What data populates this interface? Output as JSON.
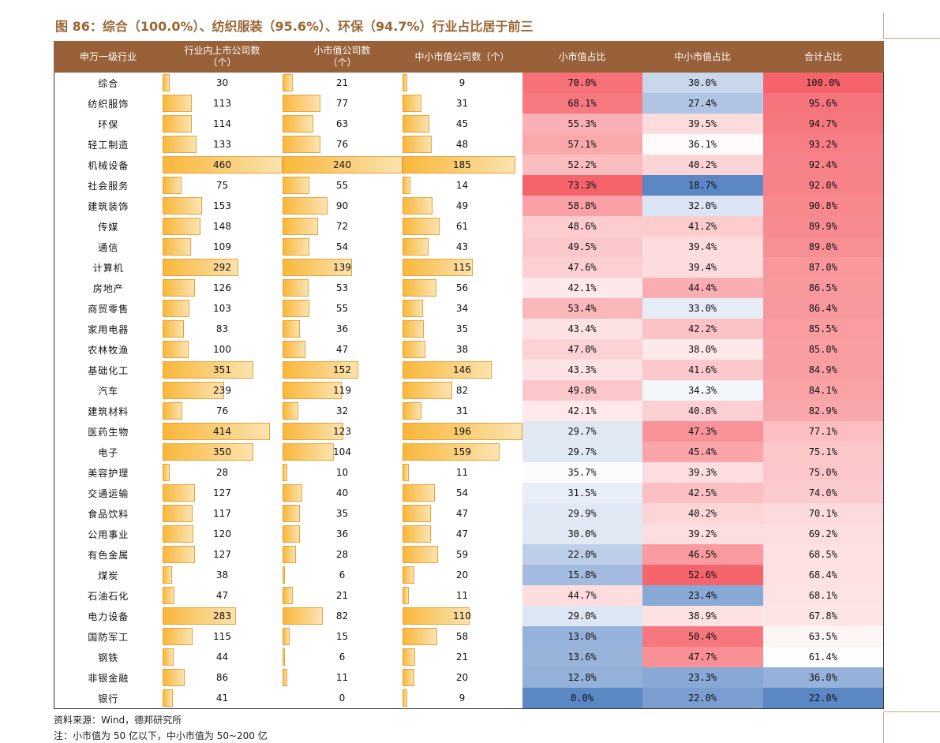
{
  "title": "图 86：综合（100.0%）、纺织服装（95.6%）、环保（94.7%）行业占比居于前三",
  "headers": [
    "申万一级行业",
    "行业内上市公司数\n（个）",
    "小市值公司数\n（个）",
    "中小市值公司数（个）",
    "小市值占比",
    "中小市值占比",
    "合计占比"
  ],
  "colors": {
    "header_bg": "#99613a",
    "bar": "#f9b73a",
    "heat_high": "#f5636b",
    "heat_mid": "#ffffff",
    "heat_low": "#5b87c5"
  },
  "rows": [
    {
      "name": "综合",
      "total": "30",
      "small": "21",
      "mid": "9",
      "small_pct": "70.0%",
      "mid_pct": "30.0%",
      "sum_pct": "100.0%"
    },
    {
      "name": "纺织服饰",
      "total": "113",
      "small": "77",
      "mid": "31",
      "small_pct": "68.1%",
      "mid_pct": "27.4%",
      "sum_pct": "95.6%"
    },
    {
      "name": "环保",
      "total": "114",
      "small": "63",
      "mid": "45",
      "small_pct": "55.3%",
      "mid_pct": "39.5%",
      "sum_pct": "94.7%"
    },
    {
      "name": "轻工制造",
      "total": "133",
      "small": "76",
      "mid": "48",
      "small_pct": "57.1%",
      "mid_pct": "36.1%",
      "sum_pct": "93.2%"
    },
    {
      "name": "机械设备",
      "total": "460",
      "small": "240",
      "mid": "185",
      "small_pct": "52.2%",
      "mid_pct": "40.2%",
      "sum_pct": "92.4%"
    },
    {
      "name": "社会服务",
      "total": "75",
      "small": "55",
      "mid": "14",
      "small_pct": "73.3%",
      "mid_pct": "18.7%",
      "sum_pct": "92.0%"
    },
    {
      "name": "建筑装饰",
      "total": "153",
      "small": "90",
      "mid": "49",
      "small_pct": "58.8%",
      "mid_pct": "32.0%",
      "sum_pct": "90.8%"
    },
    {
      "name": "传媒",
      "total": "148",
      "small": "72",
      "mid": "61",
      "small_pct": "48.6%",
      "mid_pct": "41.2%",
      "sum_pct": "89.9%"
    },
    {
      "name": "通信",
      "total": "109",
      "small": "54",
      "mid": "43",
      "small_pct": "49.5%",
      "mid_pct": "39.4%",
      "sum_pct": "89.0%"
    },
    {
      "name": "计算机",
      "total": "292",
      "small": "139",
      "mid": "115",
      "small_pct": "47.6%",
      "mid_pct": "39.4%",
      "sum_pct": "87.0%"
    },
    {
      "name": "房地产",
      "total": "126",
      "small": "53",
      "mid": "56",
      "small_pct": "42.1%",
      "mid_pct": "44.4%",
      "sum_pct": "86.5%"
    },
    {
      "name": "商贸零售",
      "total": "103",
      "small": "55",
      "mid": "34",
      "small_pct": "53.4%",
      "mid_pct": "33.0%",
      "sum_pct": "86.4%"
    },
    {
      "name": "家用电器",
      "total": "83",
      "small": "36",
      "mid": "35",
      "small_pct": "43.4%",
      "mid_pct": "42.2%",
      "sum_pct": "85.5%"
    },
    {
      "name": "农林牧渔",
      "total": "100",
      "small": "47",
      "mid": "38",
      "small_pct": "47.0%",
      "mid_pct": "38.0%",
      "sum_pct": "85.0%"
    },
    {
      "name": "基础化工",
      "total": "351",
      "small": "152",
      "mid": "146",
      "small_pct": "43.3%",
      "mid_pct": "41.6%",
      "sum_pct": "84.9%"
    },
    {
      "name": "汽车",
      "total": "239",
      "small": "119",
      "mid": "82",
      "small_pct": "49.8%",
      "mid_pct": "34.3%",
      "sum_pct": "84.1%"
    },
    {
      "name": "建筑材料",
      "total": "76",
      "small": "32",
      "mid": "31",
      "small_pct": "42.1%",
      "mid_pct": "40.8%",
      "sum_pct": "82.9%"
    },
    {
      "name": "医药生物",
      "total": "414",
      "small": "123",
      "mid": "196",
      "small_pct": "29.7%",
      "mid_pct": "47.3%",
      "sum_pct": "77.1%"
    },
    {
      "name": "电子",
      "total": "350",
      "small": "104",
      "mid": "159",
      "small_pct": "29.7%",
      "mid_pct": "45.4%",
      "sum_pct": "75.1%"
    },
    {
      "name": "美容护理",
      "total": "28",
      "small": "10",
      "mid": "11",
      "small_pct": "35.7%",
      "mid_pct": "39.3%",
      "sum_pct": "75.0%"
    },
    {
      "name": "交通运输",
      "total": "127",
      "small": "40",
      "mid": "54",
      "small_pct": "31.5%",
      "mid_pct": "42.5%",
      "sum_pct": "74.0%"
    },
    {
      "name": "食品饮料",
      "total": "117",
      "small": "35",
      "mid": "47",
      "small_pct": "29.9%",
      "mid_pct": "40.2%",
      "sum_pct": "70.1%"
    },
    {
      "name": "公用事业",
      "total": "120",
      "small": "36",
      "mid": "47",
      "small_pct": "30.0%",
      "mid_pct": "39.2%",
      "sum_pct": "69.2%"
    },
    {
      "name": "有色金属",
      "total": "127",
      "small": "28",
      "mid": "59",
      "small_pct": "22.0%",
      "mid_pct": "46.5%",
      "sum_pct": "68.5%"
    },
    {
      "name": "煤炭",
      "total": "38",
      "small": "6",
      "mid": "20",
      "small_pct": "15.8%",
      "mid_pct": "52.6%",
      "sum_pct": "68.4%"
    },
    {
      "name": "石油石化",
      "total": "47",
      "small": "21",
      "mid": "11",
      "small_pct": "44.7%",
      "mid_pct": "23.4%",
      "sum_pct": "68.1%"
    },
    {
      "name": "电力设备",
      "total": "283",
      "small": "82",
      "mid": "110",
      "small_pct": "29.0%",
      "mid_pct": "38.9%",
      "sum_pct": "67.8%"
    },
    {
      "name": "国防军工",
      "total": "115",
      "small": "15",
      "mid": "58",
      "small_pct": "13.0%",
      "mid_pct": "50.4%",
      "sum_pct": "63.5%"
    },
    {
      "name": "钢铁",
      "total": "44",
      "small": "6",
      "mid": "21",
      "small_pct": "13.6%",
      "mid_pct": "47.7%",
      "sum_pct": "61.4%"
    },
    {
      "name": "非银金融",
      "total": "86",
      "small": "11",
      "mid": "20",
      "small_pct": "12.8%",
      "mid_pct": "23.3%",
      "sum_pct": "36.0%"
    },
    {
      "name": "银行",
      "total": "41",
      "small": "0",
      "mid": "9",
      "small_pct": "0.0%",
      "mid_pct": "22.0%",
      "sum_pct": "22.0%"
    }
  ],
  "footnotes": {
    "source": "资料来源：Wind，德邦研究所",
    "note": "注：小市值为 50 亿以下，中小市值为 50~200 亿"
  }
}
